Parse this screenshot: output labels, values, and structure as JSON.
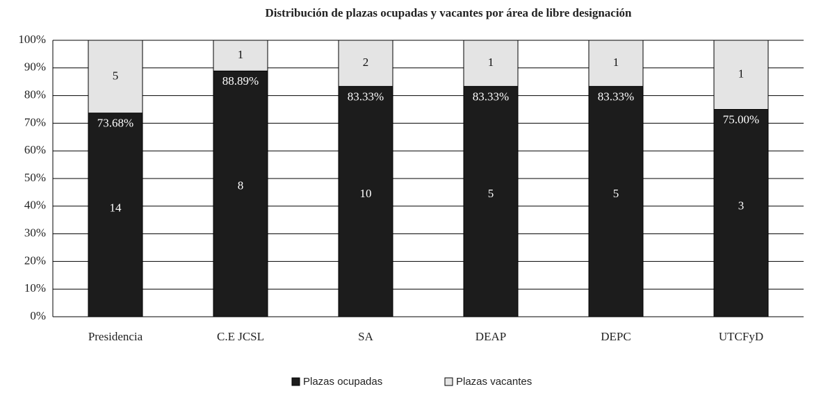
{
  "chart_data": {
    "type": "stacked_bar_percent",
    "title": "Distribución de plazas ocupadas y vacantes por área de libre designación",
    "categories": [
      "Presidencia",
      "C.E JCSL",
      "SA",
      "DEAP",
      "DEPC",
      "UTCFyD"
    ],
    "series": [
      {
        "name": "Plazas ocupadas",
        "color": "#1c1c1c",
        "values": [
          73.68,
          88.89,
          83.33,
          83.33,
          83.33,
          75.0
        ],
        "value_labels": [
          "73.68%",
          "88.89%",
          "83.33%",
          "83.33%",
          "83.33%",
          "75.00%"
        ],
        "counts": [
          14,
          8,
          10,
          5,
          5,
          3
        ]
      },
      {
        "name": "Plazas vacantes",
        "color": "#e4e4e4",
        "values": [
          26.32,
          11.11,
          16.67,
          16.67,
          16.67,
          25.0
        ],
        "counts": [
          5,
          1,
          2,
          1,
          1,
          1
        ]
      }
    ],
    "ylim": [
      0,
      100
    ],
    "yticks": [
      {
        "value": 0,
        "label": "0%"
      },
      {
        "value": 10,
        "label": "10%"
      },
      {
        "value": 20,
        "label": "20%"
      },
      {
        "value": 30,
        "label": "30%"
      },
      {
        "value": 40,
        "label": "40%"
      },
      {
        "value": 50,
        "label": "50%"
      },
      {
        "value": 60,
        "label": "60%"
      },
      {
        "value": 70,
        "label": "70%"
      },
      {
        "value": 80,
        "label": "80%"
      },
      {
        "value": 90,
        "label": "90%"
      },
      {
        "value": 100,
        "label": "100%"
      }
    ],
    "grid": true,
    "legend": "bottom"
  }
}
